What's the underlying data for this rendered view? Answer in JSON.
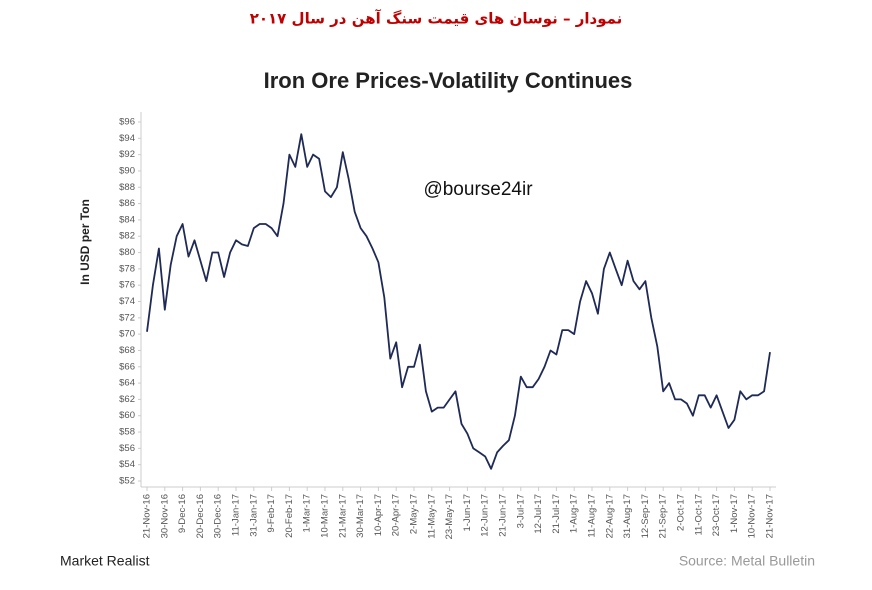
{
  "chart_data": {
    "type": "line",
    "header": "نمودار – نوسان های قیمت سنگ آهن در سال ۲۰۱۷",
    "title": "Iron Ore Prices-Volatility Continues",
    "ylabel": "In USD per Ton",
    "watermark": "@bourse24ir",
    "brand": "Market Realist",
    "source": "Source: Metal Bulletin",
    "color": "#1f2a56",
    "categories": [
      "21-Nov-16",
      null,
      null,
      "30-Nov-16",
      null,
      null,
      "9-Dec-16",
      null,
      null,
      "20-Dec-16",
      null,
      null,
      "30-Dec-16",
      null,
      null,
      "11-Jan-17",
      null,
      null,
      "31-Jan-17",
      null,
      null,
      "9-Feb-17",
      null,
      null,
      "20-Feb-17",
      null,
      null,
      "1-Mar-17",
      null,
      null,
      "10-Mar-17",
      null,
      null,
      "21-Mar-17",
      null,
      null,
      "30-Mar-17",
      null,
      null,
      "10-Apr-17",
      null,
      null,
      "20-Apr-17",
      null,
      null,
      "2-May-17",
      null,
      null,
      "11-May-17",
      null,
      null,
      "23-May-17",
      null,
      null,
      "1-Jun-17",
      null,
      null,
      "12-Jun-17",
      null,
      null,
      "21-Jun-17",
      null,
      null,
      "3-Jul-17",
      null,
      null,
      "12-Jul-17",
      null,
      null,
      "21-Jul-17",
      null,
      null,
      "1-Aug-17",
      null,
      null,
      "11-Aug-17",
      null,
      null,
      "22-Aug-17",
      null,
      null,
      "31-Aug-17",
      null,
      null,
      "12-Sep-17",
      null,
      null,
      "21-Sep-17",
      null,
      null,
      "2-Oct-17",
      null,
      null,
      "11-Oct-17",
      null,
      null,
      "23-Oct-17",
      null,
      null,
      "1-Nov-17",
      null,
      null,
      "10-Nov-17",
      null,
      null,
      "21-Nov-17"
    ],
    "values": [
      70.3,
      76,
      80.5,
      73,
      78.5,
      82,
      83.5,
      79.5,
      81.5,
      79,
      76.5,
      80,
      80,
      77,
      80,
      81.5,
      81,
      80.8,
      83,
      83.5,
      83.5,
      83,
      82,
      86,
      92,
      90.5,
      94.5,
      90.5,
      92,
      91.5,
      87.5,
      86.8,
      88,
      92.3,
      89,
      85,
      83,
      82,
      80.5,
      78.8,
      74.5,
      67,
      69,
      63.5,
      66,
      66,
      68.7,
      63,
      60.5,
      61,
      61,
      62,
      63,
      59,
      57.8,
      56,
      55.5,
      55,
      53.5,
      55.5,
      56.3,
      57,
      60,
      64.8,
      63.5,
      63.5,
      64.5,
      66,
      68,
      67.5,
      70.5,
      70.5,
      70,
      74,
      76.5,
      75,
      72.5,
      78,
      80,
      78,
      76,
      79,
      76.5,
      75.5,
      76.5,
      72,
      68.5,
      63,
      64,
      62,
      62,
      61.5,
      60,
      62.5,
      62.5,
      61,
      62.5,
      60.5,
      58.5,
      59.5,
      63,
      62,
      62.5,
      62.5,
      63,
      67.8
    ],
    "ylim": [
      52,
      96
    ],
    "yticks": [
      {
        "value": 52,
        "label": "$52"
      },
      {
        "value": 54,
        "label": "$54"
      },
      {
        "value": 56,
        "label": "$56"
      },
      {
        "value": 58,
        "label": "$58"
      },
      {
        "value": 60,
        "label": "$60"
      },
      {
        "value": 62,
        "label": "$62"
      },
      {
        "value": 64,
        "label": "$64"
      },
      {
        "value": 66,
        "label": "$66"
      },
      {
        "value": 68,
        "label": "$68"
      },
      {
        "value": 70,
        "label": "$70"
      },
      {
        "value": 72,
        "label": "$72"
      },
      {
        "value": 74,
        "label": "$74"
      },
      {
        "value": 76,
        "label": "$76"
      },
      {
        "value": 78,
        "label": "$78"
      },
      {
        "value": 80,
        "label": "$80"
      },
      {
        "value": 82,
        "label": "$82"
      },
      {
        "value": 84,
        "label": "$84"
      },
      {
        "value": 86,
        "label": "$86"
      },
      {
        "value": 88,
        "label": "$88"
      },
      {
        "value": 90,
        "label": "$90"
      },
      {
        "value": 92,
        "label": "$92"
      },
      {
        "value": 94,
        "label": "$94"
      },
      {
        "value": 96,
        "label": "$96"
      }
    ]
  }
}
